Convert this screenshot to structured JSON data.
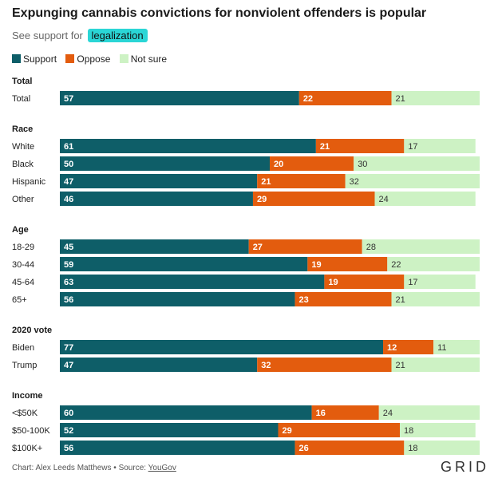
{
  "header": {
    "title": "Expunging cannabis convictions for nonviolent offenders is popular",
    "subtitle_prefix": "See support for",
    "subtitle_link": "legalization"
  },
  "legend": [
    {
      "label": "Support",
      "color": "#0e5e68"
    },
    {
      "label": "Oppose",
      "color": "#e35c0e"
    },
    {
      "label": "Not sure",
      "color": "#cdf2c4"
    }
  ],
  "footer": {
    "credit": "Chart: Alex Leeds Matthews • Source: ",
    "source": "YouGov",
    "brand": "GRID"
  },
  "chart_data": {
    "type": "bar",
    "orientation": "horizontal",
    "stacked": true,
    "xlim": [
      0,
      100
    ],
    "series_names": [
      "Support",
      "Oppose",
      "Not sure"
    ],
    "colors": [
      "#0e5e68",
      "#e35c0e",
      "#cdf2c4"
    ],
    "groups": [
      {
        "name": "Total",
        "rows": [
          {
            "label": "Total",
            "values": [
              57,
              22,
              21
            ]
          }
        ]
      },
      {
        "name": "Race",
        "rows": [
          {
            "label": "White",
            "values": [
              61,
              21,
              17
            ]
          },
          {
            "label": "Black",
            "values": [
              50,
              20,
              30
            ]
          },
          {
            "label": "Hispanic",
            "values": [
              47,
              21,
              32
            ]
          },
          {
            "label": "Other",
            "values": [
              46,
              29,
              24
            ]
          }
        ]
      },
      {
        "name": "Age",
        "rows": [
          {
            "label": "18-29",
            "values": [
              45,
              27,
              28
            ]
          },
          {
            "label": "30-44",
            "values": [
              59,
              19,
              22
            ]
          },
          {
            "label": "45-64",
            "values": [
              63,
              19,
              17
            ]
          },
          {
            "label": "65+",
            "values": [
              56,
              23,
              21
            ]
          }
        ]
      },
      {
        "name": "2020 vote",
        "rows": [
          {
            "label": "Biden",
            "values": [
              77,
              12,
              11
            ]
          },
          {
            "label": "Trump",
            "values": [
              47,
              32,
              21
            ]
          }
        ]
      },
      {
        "name": "Income",
        "rows": [
          {
            "label": "<$50K",
            "values": [
              60,
              16,
              24
            ]
          },
          {
            "label": "$50-100K",
            "values": [
              52,
              29,
              18
            ]
          },
          {
            "label": "$100K+",
            "values": [
              56,
              26,
              18
            ]
          }
        ]
      }
    ]
  }
}
